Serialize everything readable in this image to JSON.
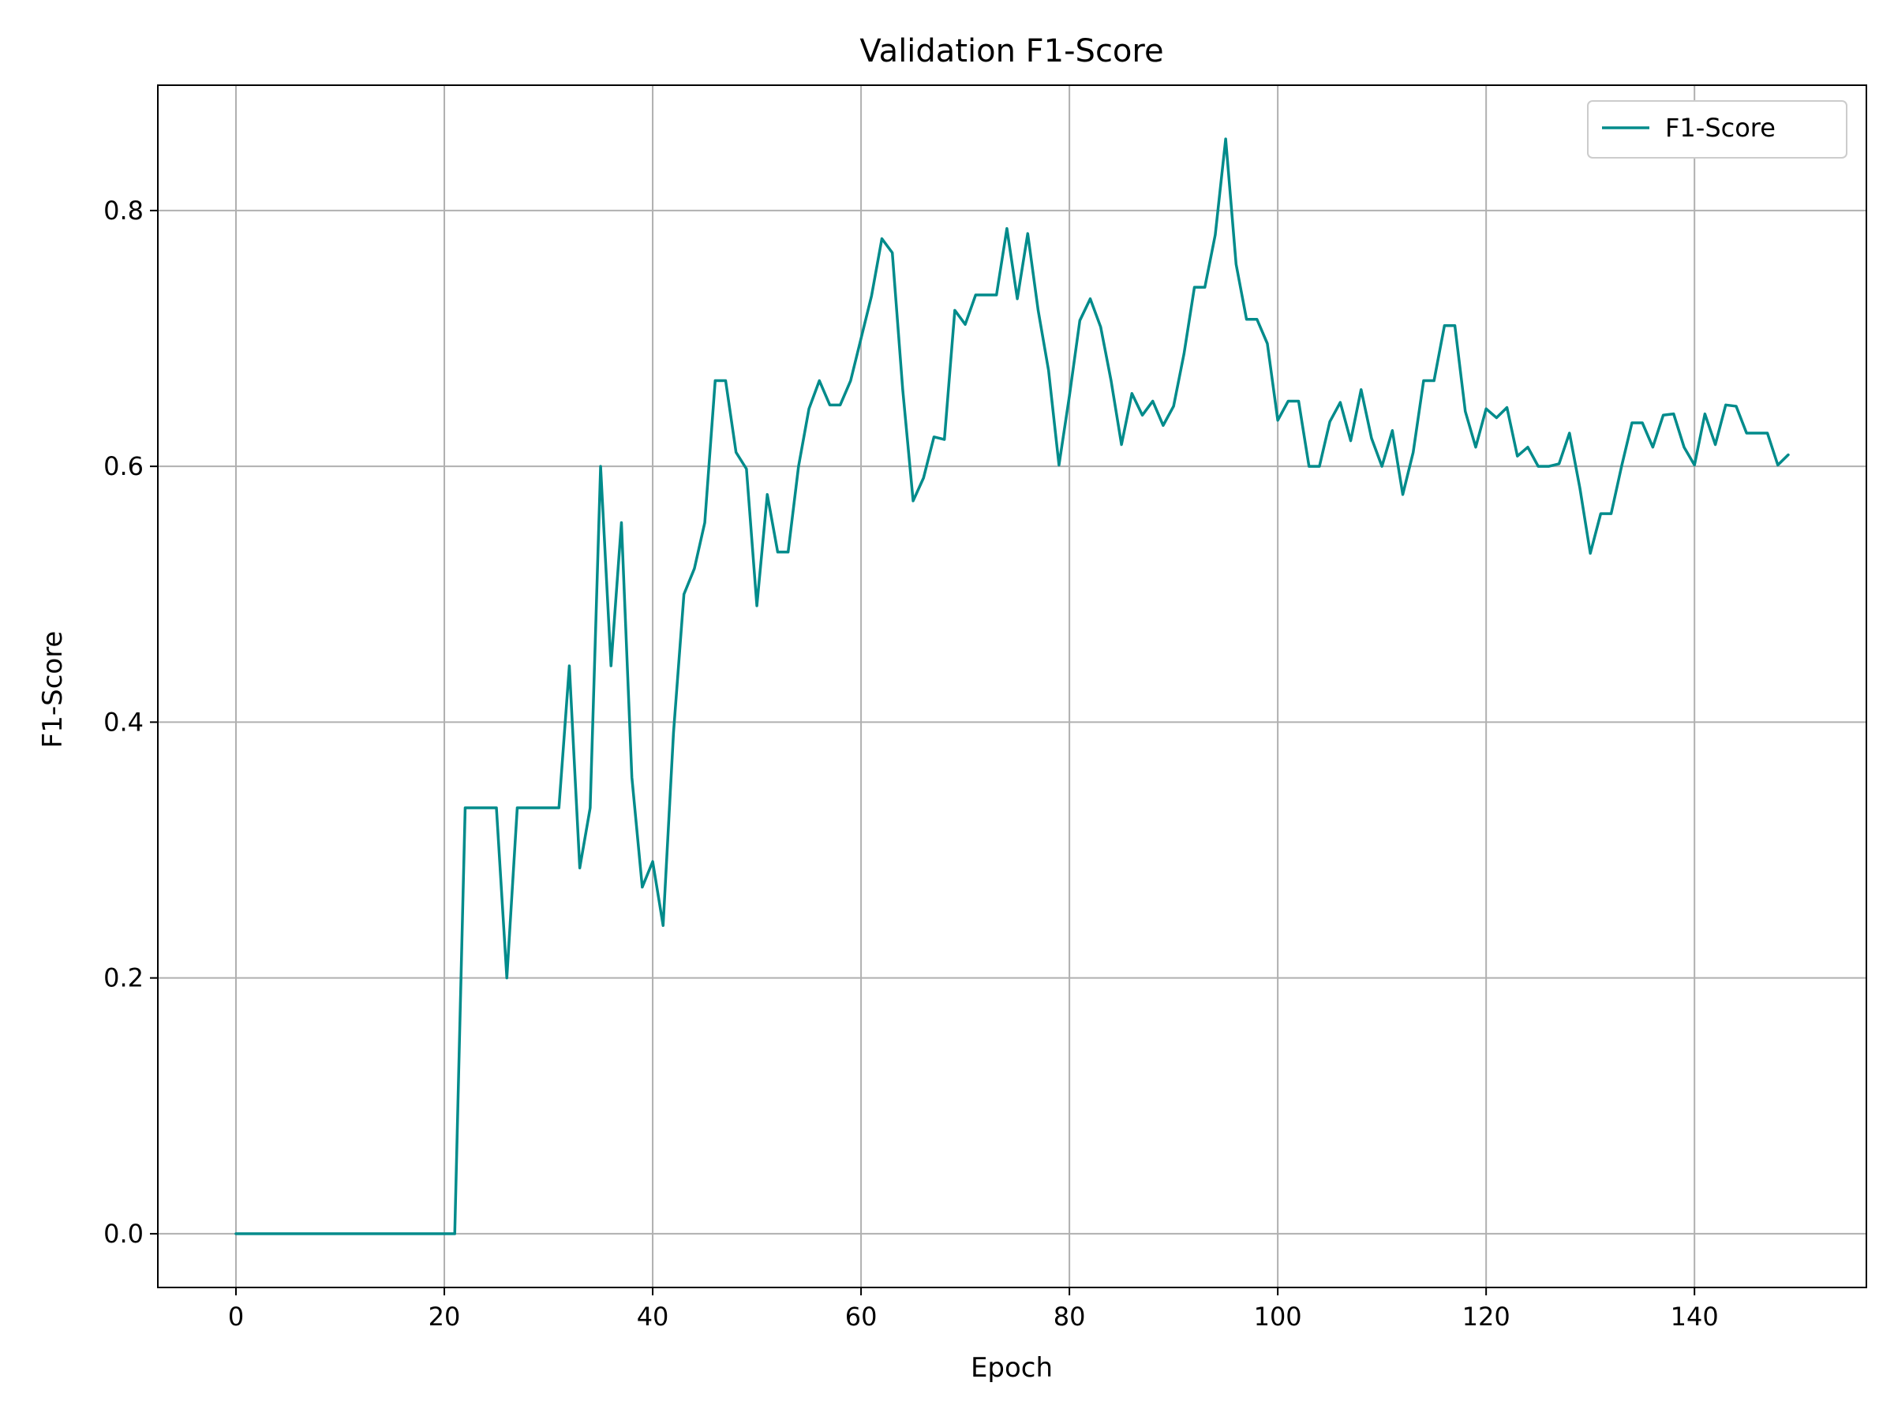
{
  "chart_data": {
    "type": "line",
    "title": "Validation F1-Score",
    "xlabel": "Epoch",
    "ylabel": "F1-Score",
    "xlim": [
      -7.5,
      156.5
    ],
    "ylim": [
      -0.042,
      0.898
    ],
    "xticks": [
      0,
      20,
      40,
      60,
      80,
      100,
      120,
      140
    ],
    "yticks": [
      0.0,
      0.2,
      0.4,
      0.6,
      0.8
    ],
    "xtick_labels": [
      "0",
      "20",
      "40",
      "60",
      "80",
      "100",
      "120",
      "140"
    ],
    "ytick_labels": [
      "0.0",
      "0.2",
      "0.4",
      "0.6",
      "0.8"
    ],
    "grid": true,
    "legend_position": "top-right",
    "series": [
      {
        "name": "F1-Score",
        "color": "#008b8b",
        "x": [
          0,
          1,
          2,
          3,
          4,
          5,
          6,
          7,
          8,
          9,
          10,
          11,
          12,
          13,
          14,
          15,
          16,
          17,
          18,
          19,
          20,
          21,
          22,
          23,
          24,
          25,
          26,
          27,
          28,
          29,
          30,
          31,
          32,
          33,
          34,
          35,
          36,
          37,
          38,
          39,
          40,
          41,
          42,
          43,
          44,
          45,
          46,
          47,
          48,
          49,
          50,
          51,
          52,
          53,
          54,
          55,
          56,
          57,
          58,
          59,
          60,
          61,
          62,
          63,
          64,
          65,
          66,
          67,
          68,
          69,
          70,
          71,
          72,
          73,
          74,
          75,
          76,
          77,
          78,
          79,
          80,
          81,
          82,
          83,
          84,
          85,
          86,
          87,
          88,
          89,
          90,
          91,
          92,
          93,
          94,
          95,
          96,
          97,
          98,
          99,
          100,
          101,
          102,
          103,
          104,
          105,
          106,
          107,
          108,
          109,
          110,
          111,
          112,
          113,
          114,
          115,
          116,
          117,
          118,
          119,
          120,
          121,
          122,
          123,
          124,
          125,
          126,
          127,
          128,
          129,
          130,
          131,
          132,
          133,
          134,
          135,
          136,
          137,
          138,
          139,
          140,
          141,
          142,
          143,
          144,
          145,
          146,
          147,
          148,
          149
        ],
        "values": [
          0,
          0,
          0,
          0,
          0,
          0,
          0,
          0,
          0,
          0,
          0,
          0,
          0,
          0,
          0,
          0,
          0,
          0,
          0,
          0,
          0,
          0,
          0.333,
          0.333,
          0.333,
          0.333,
          0.2,
          0.333,
          0.333,
          0.333,
          0.333,
          0.333,
          0.444,
          0.286,
          0.333,
          0.6,
          0.444,
          0.556,
          0.357,
          0.271,
          0.291,
          0.241,
          0.392,
          0.5,
          0.52,
          0.556,
          0.667,
          0.667,
          0.611,
          0.598,
          0.491,
          0.578,
          0.533,
          0.533,
          0.6,
          0.645,
          0.667,
          0.648,
          0.648,
          0.667,
          0.7,
          0.733,
          0.778,
          0.767,
          0.66,
          0.573,
          0.591,
          0.623,
          0.621,
          0.722,
          0.711,
          0.734,
          0.734,
          0.734,
          0.786,
          0.731,
          0.782,
          0.722,
          0.675,
          0.601,
          0.655,
          0.714,
          0.731,
          0.709,
          0.667,
          0.617,
          0.657,
          0.64,
          0.651,
          0.632,
          0.647,
          0.688,
          0.74,
          0.74,
          0.781,
          0.856,
          0.758,
          0.715,
          0.715,
          0.696,
          0.636,
          0.651,
          0.651,
          0.6,
          0.6,
          0.635,
          0.65,
          0.62,
          0.66,
          0.622,
          0.6,
          0.628,
          0.578,
          0.611,
          0.667,
          0.667,
          0.71,
          0.71,
          0.643,
          0.615,
          0.645,
          0.638,
          0.646,
          0.608,
          0.615,
          0.6,
          0.6,
          0.602,
          0.626,
          0.583,
          0.532,
          0.563,
          0.563,
          0.6,
          0.634,
          0.634,
          0.615,
          0.64,
          0.641,
          0.615,
          0.601,
          0.641,
          0.617,
          0.648,
          0.647,
          0.626,
          0.626,
          0.626,
          0.601,
          0.609
        ]
      }
    ]
  }
}
